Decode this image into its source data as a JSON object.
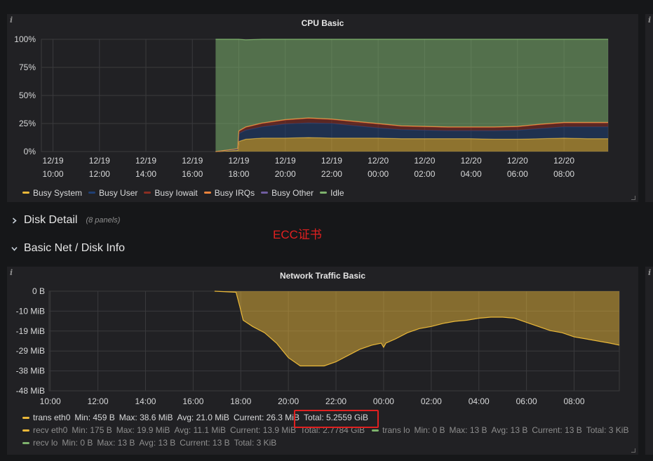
{
  "cpu_panel": {
    "title": "CPU Basic",
    "info_icon": "info-icon",
    "chart_data": {
      "type": "area",
      "stacked": true,
      "title": "CPU Basic",
      "x_ticks": [
        {
          "date": "12/19",
          "time": "10:00",
          "h": 0
        },
        {
          "date": "12/19",
          "time": "12:00",
          "h": 2
        },
        {
          "date": "12/19",
          "time": "14:00",
          "h": 4
        },
        {
          "date": "12/19",
          "time": "16:00",
          "h": 6
        },
        {
          "date": "12/19",
          "time": "18:00",
          "h": 8
        },
        {
          "date": "12/19",
          "time": "20:00",
          "h": 10
        },
        {
          "date": "12/19",
          "time": "22:00",
          "h": 12
        },
        {
          "date": "12/20",
          "time": "00:00",
          "h": 14
        },
        {
          "date": "12/20",
          "time": "02:00",
          "h": 16
        },
        {
          "date": "12/20",
          "time": "04:00",
          "h": 18
        },
        {
          "date": "12/20",
          "time": "06:00",
          "h": 20
        },
        {
          "date": "12/20",
          "time": "08:00",
          "h": 22
        }
      ],
      "y_ticks": [
        "100%",
        "75%",
        "50%",
        "25%",
        "0%"
      ],
      "ylim": [
        0,
        100
      ],
      "xlim_hours": [
        -0.5,
        23.9
      ],
      "grid": true,
      "legend_position": "bottom",
      "x": [
        7.0,
        7.95,
        8.0,
        8.3,
        9.0,
        10.0,
        11.0,
        12.0,
        13.0,
        14.0,
        15.0,
        16.0,
        17.0,
        18.0,
        19.0,
        20.0,
        21.0,
        22.0,
        23.0,
        23.9
      ],
      "series": [
        {
          "name": "Busy System",
          "color": "#eab839",
          "values": [
            0,
            1,
            9,
            11,
            12,
            12,
            12.5,
            12,
            12,
            12,
            11.5,
            11.5,
            11.5,
            11.5,
            11,
            11,
            11.5,
            12,
            11.5,
            11.5
          ]
        },
        {
          "name": "Busy User",
          "color": "#1f3f73",
          "values": [
            0,
            1,
            7,
            8,
            10,
            12.5,
            13,
            13,
            11,
            9,
            8,
            7.5,
            7,
            7,
            7.5,
            8,
            9,
            10,
            10.5,
            10.5
          ]
        },
        {
          "name": "Busy Iowait",
          "color": "#8b2e22",
          "values": [
            0,
            0.5,
            2,
            2.5,
            3,
            3.5,
            4,
            3.5,
            3.5,
            3.5,
            3,
            3,
            3,
            3,
            3,
            3,
            3.5,
            3.5,
            3.5,
            3.5
          ]
        },
        {
          "name": "Busy IRQs",
          "color": "#ef843c",
          "values": [
            0,
            0,
            0.5,
            0.5,
            0.5,
            0.5,
            0.5,
            0.5,
            0.5,
            0.5,
            0.5,
            0.5,
            0.5,
            0.5,
            0.5,
            0.5,
            0.5,
            0.5,
            0.5,
            0.5
          ]
        },
        {
          "name": "Busy Other",
          "color": "#705da0",
          "values": [
            0,
            0,
            0,
            0,
            0,
            0,
            0,
            0,
            0,
            0,
            0,
            0,
            0,
            0,
            0,
            0,
            0,
            0,
            0,
            0
          ]
        },
        {
          "name": "Idle",
          "color": "#7eb26d",
          "values": [
            100,
            97.5,
            81.5,
            77.5,
            74.5,
            71.5,
            70,
            71,
            73,
            75,
            77,
            77.5,
            78,
            78,
            78,
            77.5,
            75.5,
            74,
            74,
            74
          ]
        }
      ]
    }
  },
  "rows": {
    "disk_detail": {
      "title": "Disk Detail",
      "count": "(8 panels)",
      "icon": "chevron-right-icon"
    },
    "basic_net": {
      "title": "Basic Net / Disk Info",
      "icon": "chevron-down-icon"
    }
  },
  "annotation": {
    "text": "ECC证书",
    "color": "#e02020"
  },
  "net_panel": {
    "title": "Network Traffic Basic",
    "info_icon": "info-icon",
    "chart_data": {
      "type": "area",
      "title": "Network Traffic Basic",
      "x_ticks": [
        {
          "label": "10:00",
          "h": 0
        },
        {
          "label": "12:00",
          "h": 2
        },
        {
          "label": "14:00",
          "h": 4
        },
        {
          "label": "16:00",
          "h": 6
        },
        {
          "label": "18:00",
          "h": 8
        },
        {
          "label": "20:00",
          "h": 10
        },
        {
          "label": "22:00",
          "h": 12
        },
        {
          "label": "00:00",
          "h": 14
        },
        {
          "label": "02:00",
          "h": 16
        },
        {
          "label": "04:00",
          "h": 18
        },
        {
          "label": "06:00",
          "h": 20
        },
        {
          "label": "08:00",
          "h": 22
        }
      ],
      "y_ticks": [
        {
          "label": "0 B",
          "v": 0
        },
        {
          "label": "-10 MiB",
          "v": -9.6
        },
        {
          "label": "-19 MiB",
          "v": -19.2
        },
        {
          "label": "-29 MiB",
          "v": -28.8
        },
        {
          "label": "-38 MiB",
          "v": -38.4
        },
        {
          "label": "-48 MiB",
          "v": -48
        }
      ],
      "unit": "MiB",
      "ylim": [
        -48,
        0
      ],
      "xlim_hours": [
        -0.05,
        23.9
      ],
      "grid": true,
      "legend_position": "bottom",
      "series_drawn": {
        "name": "trans eth0",
        "color": "#eab839",
        "x": [
          6.9,
          7.8,
          7.95,
          8.1,
          8.5,
          9.0,
          9.5,
          10.0,
          10.5,
          11.0,
          11.5,
          12.0,
          12.5,
          13.0,
          13.5,
          13.9,
          14.0,
          14.1,
          14.5,
          15.0,
          15.5,
          16.0,
          16.5,
          17.0,
          17.5,
          18.0,
          18.5,
          19.0,
          19.5,
          20.0,
          20.5,
          21.0,
          21.5,
          22.0,
          22.5,
          23.0,
          23.5,
          23.9
        ],
        "y": [
          0,
          -0.5,
          -7,
          -14,
          -17,
          -20,
          -25,
          -32,
          -36,
          -36,
          -36,
          -34,
          -31,
          -28,
          -26,
          -25,
          -27,
          -25,
          -23,
          -20,
          -18,
          -17,
          -15.5,
          -14.5,
          -14,
          -13,
          -12.5,
          -12.5,
          -13,
          -15,
          -17,
          -19,
          -20,
          -22,
          -23,
          -24,
          -25,
          -26
        ]
      }
    },
    "legend": [
      {
        "name": "trans eth0",
        "color": "#eab839",
        "min": "Min: 459 B",
        "max": "Max: 38.6 MiB",
        "avg": "Avg: 21.0 MiB",
        "current": "Current: 26.3 MiB",
        "total": "Total: 5.2559 GiB",
        "dim": false
      },
      {
        "name": "recv eth0",
        "color": "#eab839",
        "min": "Min: 175 B",
        "max": "Max: 19.9 MiB",
        "avg": "Avg: 11.1 MiB",
        "current": "Current: 13.9 MiB",
        "total": "Total: 2.7784 GiB",
        "dim": true
      },
      {
        "name": "trans lo",
        "color": "#7eb26d",
        "min": "Min: 0 B",
        "max": "Max: 13 B",
        "avg": "Avg: 13 B",
        "current": "Current: 13 B",
        "total": "Total: 3 KiB",
        "dim": true
      },
      {
        "name": "recv lo",
        "color": "#7eb26d",
        "min": "Min: 0 B",
        "max": "Max: 13 B",
        "avg": "Avg: 13 B",
        "current": "Current: 13 B",
        "total": "Total: 3 KiB",
        "dim": true
      }
    ]
  }
}
